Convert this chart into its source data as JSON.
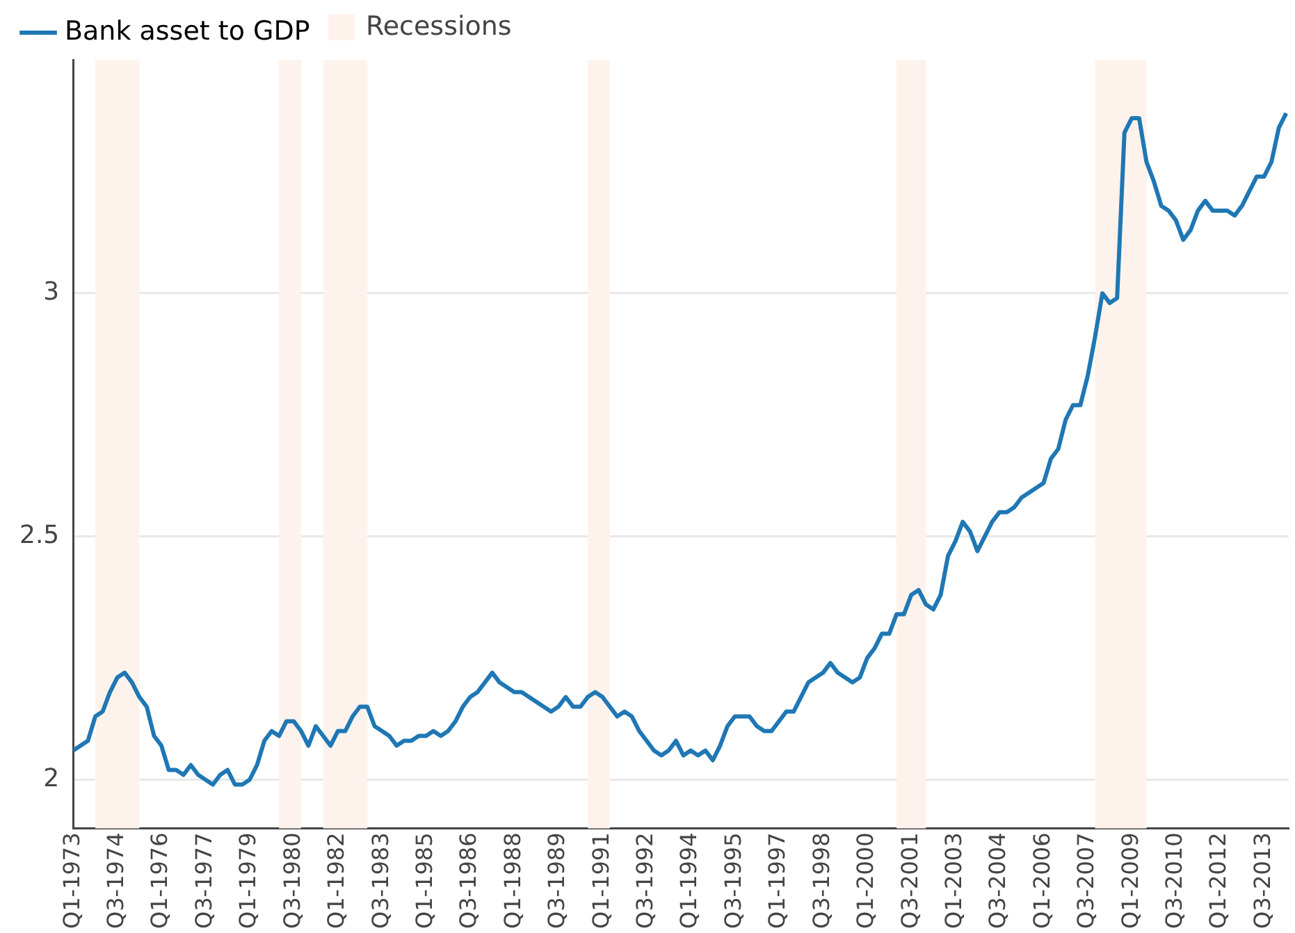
{
  "chart_data": {
    "type": "line",
    "x": [
      "1973-01",
      "1973-04",
      "1973-07",
      "1973-10",
      "1974-01",
      "1974-04",
      "1974-07",
      "1974-10",
      "1975-01",
      "1975-04",
      "1975-07",
      "1975-10",
      "1976-01",
      "1976-04",
      "1976-07",
      "1976-10",
      "1977-01",
      "1977-04",
      "1977-07",
      "1977-10",
      "1978-01",
      "1978-04",
      "1978-07",
      "1978-10",
      "1979-01",
      "1979-04",
      "1979-07",
      "1979-10",
      "1980-01",
      "1980-04",
      "1980-07",
      "1980-10",
      "1981-01",
      "1981-04",
      "1981-07",
      "1981-10",
      "1982-01",
      "1982-04",
      "1982-07",
      "1982-10",
      "1983-01",
      "1983-04",
      "1983-07",
      "1983-10",
      "1984-01",
      "1984-04",
      "1984-07",
      "1984-10",
      "1985-01",
      "1985-04",
      "1985-07",
      "1985-10",
      "1986-01",
      "1986-04",
      "1986-07",
      "1986-10",
      "1987-01",
      "1987-04",
      "1987-07",
      "1987-10",
      "1988-01",
      "1988-04",
      "1988-07",
      "1988-10",
      "1989-01",
      "1989-04",
      "1989-07",
      "1989-10",
      "1990-01",
      "1990-04",
      "1990-07",
      "1990-10",
      "1991-01",
      "1991-04",
      "1991-07",
      "1991-10",
      "1992-01",
      "1992-04",
      "1992-07",
      "1992-10",
      "1993-01",
      "1993-04",
      "1993-07",
      "1993-10",
      "1994-01",
      "1994-04",
      "1994-07",
      "1994-10",
      "1995-01",
      "1995-04",
      "1995-07",
      "1995-10",
      "1996-01",
      "1996-04",
      "1996-07",
      "1996-10",
      "1997-01",
      "1997-04",
      "1997-07",
      "1997-10",
      "1998-01",
      "1998-04",
      "1998-07",
      "1998-10",
      "1999-01",
      "1999-04",
      "1999-07",
      "1999-10",
      "2000-01",
      "2000-04",
      "2000-07",
      "2000-10",
      "2001-01",
      "2001-04",
      "2001-07",
      "2001-10",
      "2002-01",
      "2002-04",
      "2002-07",
      "2002-10",
      "2003-01",
      "2003-04",
      "2003-07",
      "2003-10",
      "2004-01",
      "2004-04",
      "2004-07",
      "2004-10",
      "2005-01",
      "2005-04",
      "2005-07",
      "2005-10",
      "2006-01",
      "2006-04",
      "2006-07",
      "2006-10",
      "2007-01",
      "2007-04",
      "2007-07",
      "2007-10",
      "2008-01",
      "2008-04",
      "2008-07",
      "2008-10",
      "2009-01",
      "2009-04",
      "2009-07",
      "2009-10",
      "2010-01",
      "2010-04",
      "2010-07",
      "2010-10",
      "2011-01",
      "2011-04",
      "2011-07",
      "2011-10",
      "2012-01",
      "2012-04",
      "2012-07",
      "2012-10",
      "2013-01",
      "2013-04",
      "2013-07",
      "2013-10",
      "2014-01",
      "2014-04"
    ],
    "series": [
      {
        "name": "Bank asset to GDP",
        "color": "#1f77b4",
        "values": [
          2.06,
          2.07,
          2.08,
          2.13,
          2.14,
          2.18,
          2.21,
          2.22,
          2.2,
          2.17,
          2.15,
          2.09,
          2.07,
          2.02,
          2.02,
          2.01,
          2.03,
          2.01,
          2.0,
          1.99,
          2.01,
          2.02,
          1.99,
          1.99,
          2.0,
          2.03,
          2.08,
          2.1,
          2.09,
          2.12,
          2.12,
          2.1,
          2.07,
          2.11,
          2.09,
          2.07,
          2.1,
          2.1,
          2.13,
          2.15,
          2.15,
          2.11,
          2.1,
          2.09,
          2.07,
          2.08,
          2.08,
          2.09,
          2.09,
          2.1,
          2.09,
          2.1,
          2.12,
          2.15,
          2.17,
          2.18,
          2.2,
          2.22,
          2.2,
          2.19,
          2.18,
          2.18,
          2.17,
          2.16,
          2.15,
          2.14,
          2.15,
          2.17,
          2.15,
          2.15,
          2.17,
          2.18,
          2.17,
          2.15,
          2.13,
          2.14,
          2.13,
          2.1,
          2.08,
          2.06,
          2.05,
          2.06,
          2.08,
          2.05,
          2.06,
          2.05,
          2.06,
          2.04,
          2.07,
          2.11,
          2.13,
          2.13,
          2.13,
          2.11,
          2.1,
          2.1,
          2.12,
          2.14,
          2.14,
          2.17,
          2.2,
          2.21,
          2.22,
          2.24,
          2.22,
          2.21,
          2.2,
          2.21,
          2.25,
          2.27,
          2.3,
          2.3,
          2.34,
          2.34,
          2.38,
          2.39,
          2.36,
          2.35,
          2.38,
          2.46,
          2.49,
          2.53,
          2.51,
          2.47,
          2.5,
          2.53,
          2.55,
          2.55,
          2.56,
          2.58,
          2.59,
          2.6,
          2.61,
          2.66,
          2.68,
          2.74,
          2.77,
          2.77,
          2.83,
          2.91,
          3.0,
          2.98,
          2.99,
          3.33,
          3.36,
          3.36,
          3.27,
          3.23,
          3.18,
          3.17,
          3.15,
          3.11,
          3.13,
          3.17,
          3.19,
          3.17,
          3.17,
          3.17,
          3.16,
          3.18,
          3.21,
          3.24,
          3.24,
          3.27,
          3.34,
          3.37
        ]
      }
    ],
    "bands": [
      {
        "axis": "x",
        "from": "1973-10",
        "to": "1975-04",
        "label": "Recessions",
        "color": "#fdf3ec"
      },
      {
        "axis": "x",
        "from": "1980-01",
        "to": "1980-10",
        "color": "#fdf3ec"
      },
      {
        "axis": "x",
        "from": "1981-07",
        "to": "1983-01",
        "color": "#fdf3ec"
      },
      {
        "axis": "x",
        "from": "1990-07",
        "to": "1991-04",
        "color": "#fdf3ec"
      },
      {
        "axis": "x",
        "from": "2001-01",
        "to": "2002-01",
        "color": "#fdf3ec"
      },
      {
        "axis": "x",
        "from": "2007-10",
        "to": "2009-07",
        "color": "#fdf3ec"
      }
    ],
    "xlim": [
      "1973-01",
      "2014-05"
    ],
    "xticks": [
      {
        "value": "1973-01",
        "label": "Q1-1973"
      },
      {
        "value": "1974-07",
        "label": "Q3-1974"
      },
      {
        "value": "1976-01",
        "label": "Q1-1976"
      },
      {
        "value": "1977-07",
        "label": "Q3-1977"
      },
      {
        "value": "1979-01",
        "label": "Q1-1979"
      },
      {
        "value": "1980-07",
        "label": "Q3-1980"
      },
      {
        "value": "1982-01",
        "label": "Q1-1982"
      },
      {
        "value": "1983-07",
        "label": "Q3-1983"
      },
      {
        "value": "1985-01",
        "label": "Q1-1985"
      },
      {
        "value": "1986-07",
        "label": "Q3-1986"
      },
      {
        "value": "1988-01",
        "label": "Q1-1988"
      },
      {
        "value": "1989-07",
        "label": "Q3-1989"
      },
      {
        "value": "1991-01",
        "label": "Q1-1991"
      },
      {
        "value": "1992-07",
        "label": "Q3-1992"
      },
      {
        "value": "1994-01",
        "label": "Q1-1994"
      },
      {
        "value": "1995-07",
        "label": "Q3-1995"
      },
      {
        "value": "1997-01",
        "label": "Q1-1997"
      },
      {
        "value": "1998-07",
        "label": "Q3-1998"
      },
      {
        "value": "2000-01",
        "label": "Q1-2000"
      },
      {
        "value": "2001-07",
        "label": "Q3-2001"
      },
      {
        "value": "2003-01",
        "label": "Q1-2003"
      },
      {
        "value": "2004-07",
        "label": "Q3-2004"
      },
      {
        "value": "2006-01",
        "label": "Q1-2006"
      },
      {
        "value": "2007-07",
        "label": "Q3-2007"
      },
      {
        "value": "2009-01",
        "label": "Q1-2009"
      },
      {
        "value": "2010-07",
        "label": "Q3-2010"
      },
      {
        "value": "2012-01",
        "label": "Q1-2012"
      },
      {
        "value": "2013-07",
        "label": "Q3-2013"
      }
    ],
    "ylim": [
      1.9,
      3.48
    ],
    "yticks": [
      2,
      2.5,
      3
    ],
    "grid": "y",
    "legend": "top left"
  }
}
